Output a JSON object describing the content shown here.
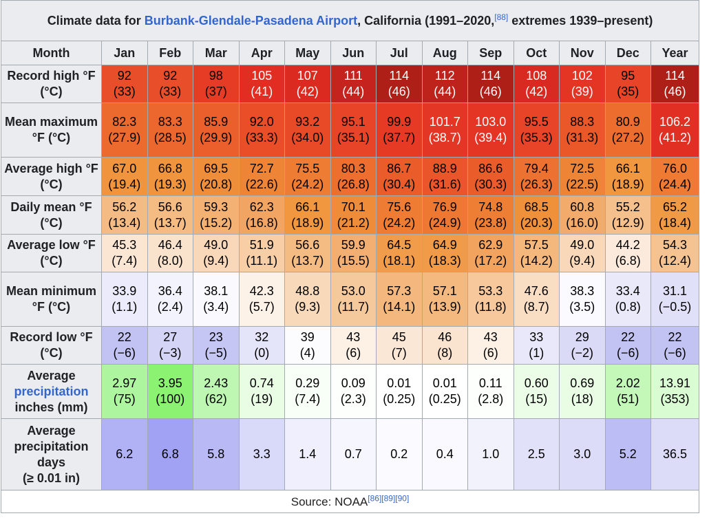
{
  "title": {
    "prefix": "Climate data for ",
    "link": "Burbank-Glendale-Pasadena Airport",
    "suffix": ", California (1991–2020,",
    "ref": "[88]",
    "suffix2": " extremes 1939–present)"
  },
  "header": {
    "month_label": "Month",
    "months": [
      "Jan",
      "Feb",
      "Mar",
      "Apr",
      "May",
      "Jun",
      "Jul",
      "Aug",
      "Sep",
      "Oct",
      "Nov",
      "Dec"
    ],
    "year_label": "Year"
  },
  "rows": [
    {
      "label": "Record high °F (°C)",
      "cells": [
        {
          "v": "92",
          "c": "(33)",
          "bg": "#e94e2a",
          "fg": "#000000"
        },
        {
          "v": "92",
          "c": "(33)",
          "bg": "#e94e2a",
          "fg": "#000000"
        },
        {
          "v": "98",
          "c": "(37)",
          "bg": "#e63c25",
          "fg": "#000000"
        },
        {
          "v": "105",
          "c": "(41)",
          "bg": "#e12d22",
          "fg": "#ffffff"
        },
        {
          "v": "107",
          "c": "(42)",
          "bg": "#db2b21",
          "fg": "#ffffff"
        },
        {
          "v": "111",
          "c": "(44)",
          "bg": "#c5231d",
          "fg": "#ffffff"
        },
        {
          "v": "114",
          "c": "(46)",
          "bg": "#ae1f17",
          "fg": "#ffffff"
        },
        {
          "v": "112",
          "c": "(44)",
          "bg": "#bd221b",
          "fg": "#ffffff"
        },
        {
          "v": "114",
          "c": "(46)",
          "bg": "#ae1f17",
          "fg": "#ffffff"
        },
        {
          "v": "108",
          "c": "(42)",
          "bg": "#d82a21",
          "fg": "#ffffff"
        },
        {
          "v": "102",
          "c": "(39)",
          "bg": "#e33424",
          "fg": "#ffffff"
        },
        {
          "v": "95",
          "c": "(35)",
          "bg": "#e84428",
          "fg": "#000000"
        }
      ],
      "year": {
        "v": "114",
        "c": "(46)",
        "bg": "#ae1f17",
        "fg": "#ffffff"
      }
    },
    {
      "label": "Mean maximum °F (°C)",
      "cells": [
        {
          "v": "82.3",
          "c": "(27.9)",
          "bg": "#ec6a2e",
          "fg": "#000000"
        },
        {
          "v": "83.3",
          "c": "(28.5)",
          "bg": "#ec672e",
          "fg": "#000000"
        },
        {
          "v": "85.9",
          "c": "(29.9)",
          "bg": "#eb5f2c",
          "fg": "#000000"
        },
        {
          "v": "92.0",
          "c": "(33.3)",
          "bg": "#e94e29",
          "fg": "#000000"
        },
        {
          "v": "93.2",
          "c": "(34.0)",
          "bg": "#e84a28",
          "fg": "#000000"
        },
        {
          "v": "95.1",
          "c": "(35.1)",
          "bg": "#e84428",
          "fg": "#000000"
        },
        {
          "v": "99.9",
          "c": "(37.7)",
          "bg": "#e63a25",
          "fg": "#000000"
        },
        {
          "v": "101.7",
          "c": "(38.7)",
          "bg": "#e43624",
          "fg": "#ffffff"
        },
        {
          "v": "103.0",
          "c": "(39.4)",
          "bg": "#e33424",
          "fg": "#ffffff"
        },
        {
          "v": "95.5",
          "c": "(35.3)",
          "bg": "#e84428",
          "fg": "#000000"
        },
        {
          "v": "88.3",
          "c": "(31.3)",
          "bg": "#ea582a",
          "fg": "#000000"
        },
        {
          "v": "80.9",
          "c": "(27.2)",
          "bg": "#ed6d2f",
          "fg": "#000000"
        }
      ],
      "year": {
        "v": "106.2",
        "c": "(41.2)",
        "bg": "#e12f23",
        "fg": "#ffffff"
      }
    },
    {
      "label": "Average high °F (°C)",
      "cells": [
        {
          "v": "67.0",
          "c": "(19.4)",
          "bg": "#f0953e",
          "fg": "#000000"
        },
        {
          "v": "66.8",
          "c": "(19.3)",
          "bg": "#f0953e",
          "fg": "#000000"
        },
        {
          "v": "69.5",
          "c": "(20.8)",
          "bg": "#ef8e3a",
          "fg": "#000000"
        },
        {
          "v": "72.7",
          "c": "(22.6)",
          "bg": "#ee8435",
          "fg": "#000000"
        },
        {
          "v": "75.5",
          "c": "(24.2)",
          "bg": "#ee7c33",
          "fg": "#000000"
        },
        {
          "v": "80.3",
          "c": "(26.8)",
          "bg": "#ed6e2f",
          "fg": "#000000"
        },
        {
          "v": "86.7",
          "c": "(30.4)",
          "bg": "#eb5c2b",
          "fg": "#000000"
        },
        {
          "v": "88.9",
          "c": "(31.6)",
          "bg": "#ea562a",
          "fg": "#000000"
        },
        {
          "v": "86.6",
          "c": "(30.3)",
          "bg": "#eb5c2b",
          "fg": "#000000"
        },
        {
          "v": "79.4",
          "c": "(26.3)",
          "bg": "#ed7131",
          "fg": "#000000"
        },
        {
          "v": "72.5",
          "c": "(22.5)",
          "bg": "#ee8536",
          "fg": "#000000"
        },
        {
          "v": "66.1",
          "c": "(18.9)",
          "bg": "#f0973f",
          "fg": "#000000"
        }
      ],
      "year": {
        "v": "76.0",
        "c": "(24.4)",
        "bg": "#ee7a33",
        "fg": "#000000"
      }
    },
    {
      "label": "Daily mean °F (°C)",
      "cells": [
        {
          "v": "56.2",
          "c": "(13.4)",
          "bg": "#f4bc84",
          "fg": "#000000"
        },
        {
          "v": "56.6",
          "c": "(13.7)",
          "bg": "#f4bb82",
          "fg": "#000000"
        },
        {
          "v": "59.3",
          "c": "(15.2)",
          "bg": "#f3b174",
          "fg": "#000000"
        },
        {
          "v": "62.3",
          "c": "(16.8)",
          "bg": "#f2a563",
          "fg": "#000000"
        },
        {
          "v": "66.1",
          "c": "(18.9)",
          "bg": "#f0973f",
          "fg": "#000000"
        },
        {
          "v": "70.1",
          "c": "(21.2)",
          "bg": "#ef8c39",
          "fg": "#000000"
        },
        {
          "v": "75.6",
          "c": "(24.2)",
          "bg": "#ee7c33",
          "fg": "#000000"
        },
        {
          "v": "76.9",
          "c": "(24.9)",
          "bg": "#ee7832",
          "fg": "#000000"
        },
        {
          "v": "74.8",
          "c": "(23.8)",
          "bg": "#ee7e34",
          "fg": "#000000"
        },
        {
          "v": "68.5",
          "c": "(20.3)",
          "bg": "#ef903b",
          "fg": "#000000"
        },
        {
          "v": "60.8",
          "c": "(16.0)",
          "bg": "#f2ab6b",
          "fg": "#000000"
        },
        {
          "v": "55.2",
          "c": "(12.9)",
          "bg": "#f5c08b",
          "fg": "#000000"
        }
      ],
      "year": {
        "v": "65.2",
        "c": "(18.4)",
        "bg": "#f19a45",
        "fg": "#000000"
      }
    },
    {
      "label": "Average low °F (°C)",
      "cells": [
        {
          "v": "45.3",
          "c": "(7.4)",
          "bg": "#fbe6d3",
          "fg": "#000000"
        },
        {
          "v": "46.4",
          "c": "(8.0)",
          "bg": "#fae3cd",
          "fg": "#000000"
        },
        {
          "v": "49.0",
          "c": "(9.4)",
          "bg": "#f8d8b9",
          "fg": "#000000"
        },
        {
          "v": "51.9",
          "c": "(11.1)",
          "bg": "#f7cea6",
          "fg": "#000000"
        },
        {
          "v": "56.6",
          "c": "(13.7)",
          "bg": "#f4bb82",
          "fg": "#000000"
        },
        {
          "v": "59.9",
          "c": "(15.5)",
          "bg": "#f3ae71",
          "fg": "#000000"
        },
        {
          "v": "64.5",
          "c": "(18.1)",
          "bg": "#f19c4a",
          "fg": "#000000"
        },
        {
          "v": "64.9",
          "c": "(18.3)",
          "bg": "#f19b48",
          "fg": "#000000"
        },
        {
          "v": "62.9",
          "c": "(17.2)",
          "bg": "#f2a35d",
          "fg": "#000000"
        },
        {
          "v": "57.5",
          "c": "(14.2)",
          "bg": "#f4b77c",
          "fg": "#000000"
        },
        {
          "v": "49.0",
          "c": "(9.4)",
          "bg": "#f8d8b9",
          "fg": "#000000"
        },
        {
          "v": "44.2",
          "c": "(6.8)",
          "bg": "#fcebdc",
          "fg": "#000000"
        }
      ],
      "year": {
        "v": "54.3",
        "c": "(12.4)",
        "bg": "#f5c391",
        "fg": "#000000"
      }
    },
    {
      "label": "Mean minimum °F (°C)",
      "cells": [
        {
          "v": "33.9",
          "c": "(1.1)",
          "bg": "#ebebfb",
          "fg": "#000000"
        },
        {
          "v": "36.4",
          "c": "(2.4)",
          "bg": "#f3f3fd",
          "fg": "#000000"
        },
        {
          "v": "38.1",
          "c": "(3.4)",
          "bg": "#f9f9fe",
          "fg": "#000000"
        },
        {
          "v": "42.3",
          "c": "(5.7)",
          "bg": "#fdf2e8",
          "fg": "#000000"
        },
        {
          "v": "48.8",
          "c": "(9.3)",
          "bg": "#f8d9ba",
          "fg": "#000000"
        },
        {
          "v": "53.0",
          "c": "(11.7)",
          "bg": "#f6c99d",
          "fg": "#000000"
        },
        {
          "v": "57.3",
          "c": "(14.1)",
          "bg": "#f4b87e",
          "fg": "#000000"
        },
        {
          "v": "57.1",
          "c": "(13.9)",
          "bg": "#f4b97f",
          "fg": "#000000"
        },
        {
          "v": "53.3",
          "c": "(11.8)",
          "bg": "#f6c89b",
          "fg": "#000000"
        },
        {
          "v": "47.6",
          "c": "(8.7)",
          "bg": "#f9dec4",
          "fg": "#000000"
        },
        {
          "v": "38.3",
          "c": "(3.5)",
          "bg": "#fafaff",
          "fg": "#000000"
        },
        {
          "v": "33.4",
          "c": "(0.8)",
          "bg": "#e9e9fa",
          "fg": "#000000"
        }
      ],
      "year": {
        "v": "31.1",
        "c": "(−0.5)",
        "bg": "#e0e0f8",
        "fg": "#000000"
      }
    },
    {
      "label": "Record low °F (°C)",
      "cells": [
        {
          "v": "22",
          "c": "(−6)",
          "bg": "#c3c3f3",
          "fg": "#000000"
        },
        {
          "v": "27",
          "c": "(−3)",
          "bg": "#d4d4f6",
          "fg": "#000000"
        },
        {
          "v": "23",
          "c": "(−5)",
          "bg": "#c6c6f4",
          "fg": "#000000"
        },
        {
          "v": "32",
          "c": "(0)",
          "bg": "#e5e5f9",
          "fg": "#000000"
        },
        {
          "v": "39",
          "c": "(4)",
          "bg": "#fcfcff",
          "fg": "#000000"
        },
        {
          "v": "43",
          "c": "(6)",
          "bg": "#fdf0e4",
          "fg": "#000000"
        },
        {
          "v": "45",
          "c": "(7)",
          "bg": "#fbe7d5",
          "fg": "#000000"
        },
        {
          "v": "46",
          "c": "(8)",
          "bg": "#fae4cf",
          "fg": "#000000"
        },
        {
          "v": "43",
          "c": "(6)",
          "bg": "#fdf0e4",
          "fg": "#000000"
        },
        {
          "v": "33",
          "c": "(1)",
          "bg": "#e8e8fa",
          "fg": "#000000"
        },
        {
          "v": "29",
          "c": "(−2)",
          "bg": "#dadaf7",
          "fg": "#000000"
        },
        {
          "v": "22",
          "c": "(−6)",
          "bg": "#c3c3f3",
          "fg": "#000000"
        }
      ],
      "year": {
        "v": "22",
        "c": "(−6)",
        "bg": "#c3c3f3",
        "fg": "#000000"
      }
    },
    {
      "label_parts": [
        "Average",
        "precipitation",
        "inches (mm)"
      ],
      "label_link": "precipitation",
      "cells": [
        {
          "v": "2.97",
          "c": "(75)",
          "bg": "#aef5a0",
          "fg": "#000000"
        },
        {
          "v": "3.95",
          "c": "(100)",
          "bg": "#8cf272",
          "fg": "#000000"
        },
        {
          "v": "2.43",
          "c": "(62)",
          "bg": "#bdf7b2",
          "fg": "#000000"
        },
        {
          "v": "0.74",
          "c": "(19)",
          "bg": "#e9fde5",
          "fg": "#000000"
        },
        {
          "v": "0.29",
          "c": "(7.4)",
          "bg": "#f7fff6",
          "fg": "#000000"
        },
        {
          "v": "0.09",
          "c": "(2.3)",
          "bg": "#fdfffc",
          "fg": "#000000"
        },
        {
          "v": "0.01",
          "c": "(0.25)",
          "bg": "#ffffff",
          "fg": "#000000"
        },
        {
          "v": "0.01",
          "c": "(0.25)",
          "bg": "#ffffff",
          "fg": "#000000"
        },
        {
          "v": "0.11",
          "c": "(2.8)",
          "bg": "#fcfffb",
          "fg": "#000000"
        },
        {
          "v": "0.60",
          "c": "(15)",
          "bg": "#ebfde7",
          "fg": "#000000"
        },
        {
          "v": "0.69",
          "c": "(18)",
          "bg": "#e9fde5",
          "fg": "#000000"
        },
        {
          "v": "2.02",
          "c": "(51)",
          "bg": "#c3f8b9",
          "fg": "#000000"
        }
      ],
      "year": {
        "v": "13.91",
        "c": "(353)",
        "bg": "#dafcd3",
        "fg": "#000000"
      }
    },
    {
      "label_parts": [
        "Average",
        "precipitation",
        "days",
        "(≥ 0.01 in)"
      ],
      "cells": [
        {
          "v": "6.2",
          "bg": "#b1b1f6",
          "fg": "#000000"
        },
        {
          "v": "6.8",
          "bg": "#a2a2f4",
          "fg": "#000000"
        },
        {
          "v": "5.8",
          "bg": "#b9b9f6",
          "fg": "#000000"
        },
        {
          "v": "3.3",
          "bg": "#d9d9f9",
          "fg": "#000000"
        },
        {
          "v": "1.4",
          "bg": "#efeffd",
          "fg": "#000000"
        },
        {
          "v": "0.7",
          "bg": "#f6f6fe",
          "fg": "#000000"
        },
        {
          "v": "0.2",
          "bg": "#fbfbff",
          "fg": "#000000"
        },
        {
          "v": "0.4",
          "bg": "#f9f9ff",
          "fg": "#000000"
        },
        {
          "v": "1.0",
          "bg": "#f2f2fd",
          "fg": "#000000"
        },
        {
          "v": "2.5",
          "bg": "#e1e1fa",
          "fg": "#000000"
        },
        {
          "v": "3.0",
          "bg": "#dcdcf9",
          "fg": "#000000"
        },
        {
          "v": "5.2",
          "bg": "#bdbdf6",
          "fg": "#000000"
        }
      ],
      "year": {
        "v": "36.5",
        "bg": "#dcdcf9",
        "fg": "#000000"
      }
    }
  ],
  "source": {
    "label": "Source: NOAA",
    "refs": "[86][89][90]"
  }
}
